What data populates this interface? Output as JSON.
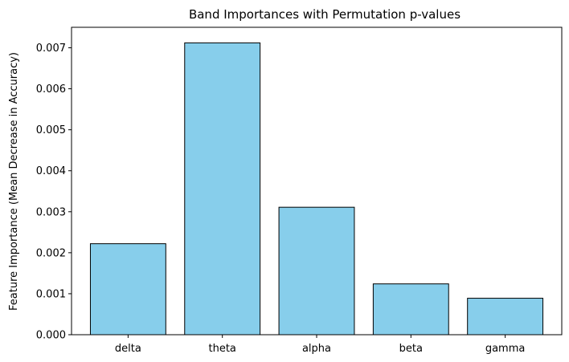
{
  "chart_data": {
    "type": "bar",
    "title": "Band Importances with Permutation p-values",
    "xlabel": "",
    "ylabel": "Feature Importance (Mean Decrease in Accuracy)",
    "categories": [
      "delta",
      "theta",
      "alpha",
      "beta",
      "gamma"
    ],
    "values": [
      0.00222,
      0.00712,
      0.00311,
      0.00124,
      0.00089
    ],
    "ylim": [
      0,
      0.0075
    ],
    "yticks": [
      0,
      0.001,
      0.002,
      0.003,
      0.004,
      0.005,
      0.006,
      0.007
    ],
    "ytick_labels": [
      "0.000",
      "0.001",
      "0.002",
      "0.003",
      "0.004",
      "0.005",
      "0.006",
      "0.007"
    ],
    "grid": false,
    "bar_color": "#87ceeb",
    "edge_color": "#000000"
  }
}
